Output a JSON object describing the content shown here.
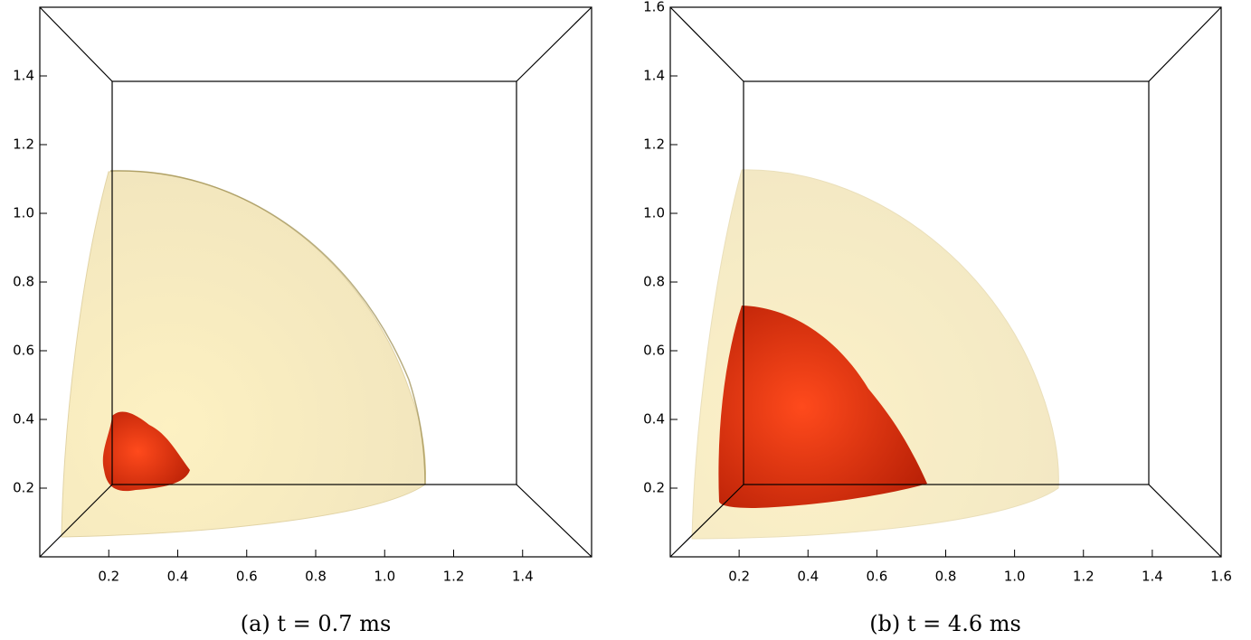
{
  "chart_data": [
    {
      "type": "volume-render",
      "caption": "(a) t = 0.7 ms",
      "xlim": [
        0,
        1.6
      ],
      "ylim": [
        0,
        1.6
      ],
      "xticks": [
        0.2,
        0.4,
        0.6,
        0.8,
        {
          "value": 1,
          "label": "1.0"
        },
        1.2,
        1.4
      ],
      "yticks": [
        0.2,
        0.4,
        0.6,
        0.8,
        {
          "value": 1,
          "label": "1.0"
        },
        1.2,
        1.4
      ]
    },
    {
      "type": "volume-render",
      "caption": "(b) t = 4.6 ms",
      "xlim": [
        0,
        1.6
      ],
      "ylim": [
        0,
        1.6
      ],
      "xticks": [
        0.2,
        0.4,
        0.6,
        0.8,
        {
          "value": 1,
          "label": "1.0"
        },
        1.2,
        1.4,
        1.6
      ],
      "yticks": [
        0.2,
        0.4,
        0.6,
        0.8,
        {
          "value": 1,
          "label": "1.0"
        },
        1.2,
        1.4,
        1.6
      ]
    }
  ]
}
